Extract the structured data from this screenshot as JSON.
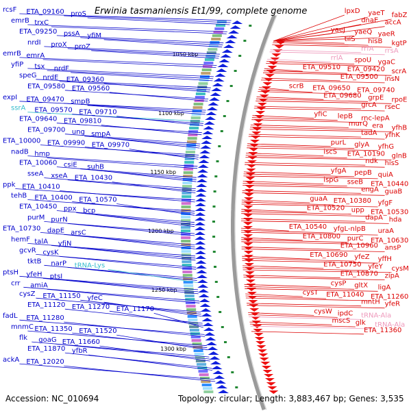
{
  "title": "Erwinia tasmaniensis Et1/99, complete genome",
  "accession": "Accession: NC_010694",
  "topology": "Topology: circular; Length: 3,883,467 bp; Genes: 3,535",
  "colors": {
    "left_genes": "#0000cc",
    "right_genes": "#dd0000",
    "trna": "#33bbcc",
    "pink": "#ee99bb",
    "backbone": "#8a8a8a"
  },
  "kbp_marks": [
    "1050 kbp",
    "1100 kbp",
    "1150 kbp",
    "1200 kbp",
    "1250 kbp",
    "1300 kbp"
  ],
  "left_labels": [
    {
      "t": "rcsF"
    },
    {
      "t": "ETA_09160"
    },
    {
      "t": "proS"
    },
    {
      "t": "emrB"
    },
    {
      "t": "trxC"
    },
    {
      "t": "ETA_09250"
    },
    {
      "t": "pssA"
    },
    {
      "t": "yfiM"
    },
    {
      "t": "nrdI"
    },
    {
      "t": "proX"
    },
    {
      "t": "proZ"
    },
    {
      "t": "emrB"
    },
    {
      "t": "emrA"
    },
    {
      "t": "yfiP"
    },
    {
      "t": "tsx"
    },
    {
      "t": "nrdF"
    },
    {
      "t": "speG"
    },
    {
      "t": "nrdE"
    },
    {
      "t": "ETA_09360"
    },
    {
      "t": "ETA_09580"
    },
    {
      "t": "ETA_09560"
    },
    {
      "t": "expI"
    },
    {
      "t": "ETA_09470"
    },
    {
      "t": "smpB"
    },
    {
      "t": "ssrA",
      "c": "trna"
    },
    {
      "t": "ETA_09570"
    },
    {
      "t": "ETA_09710"
    },
    {
      "t": "ETA_09640"
    },
    {
      "t": "ETA_09810"
    },
    {
      "t": "ETA_09700"
    },
    {
      "t": "ung"
    },
    {
      "t": "smpA"
    },
    {
      "t": "ETA_10000"
    },
    {
      "t": "ETA_09990"
    },
    {
      "t": "ETA_09970"
    },
    {
      "t": "nadB"
    },
    {
      "t": "hmp"
    },
    {
      "t": "ETA_10060"
    },
    {
      "t": "csiE"
    },
    {
      "t": "suhB"
    },
    {
      "t": "sseA"
    },
    {
      "t": "xseA"
    },
    {
      "t": "ETA_10430"
    },
    {
      "t": "ppk"
    },
    {
      "t": "ETA_10410"
    },
    {
      "t": "tehB"
    },
    {
      "t": "ETA_10400"
    },
    {
      "t": "ETA_10570"
    },
    {
      "t": "ETA_10450"
    },
    {
      "t": "ppx"
    },
    {
      "t": "bcp"
    },
    {
      "t": "purM"
    },
    {
      "t": "purN"
    },
    {
      "t": "ETA_10730"
    },
    {
      "t": "dapE"
    },
    {
      "t": "arsC"
    },
    {
      "t": "hemF"
    },
    {
      "t": "talA"
    },
    {
      "t": "yfjN"
    },
    {
      "t": "gcvR"
    },
    {
      "t": "cysK"
    },
    {
      "t": "tktB"
    },
    {
      "t": "narP"
    },
    {
      "t": "tRNA-Lys",
      "c": "trna"
    },
    {
      "t": "ptsH"
    },
    {
      "t": "yfeH"
    },
    {
      "t": "ptsI"
    },
    {
      "t": "crr"
    },
    {
      "t": "amiA"
    },
    {
      "t": "cysZ"
    },
    {
      "t": "ETA_11150"
    },
    {
      "t": "yfeC"
    },
    {
      "t": "ETA_11120"
    },
    {
      "t": "ETA_11270"
    },
    {
      "t": "ETA_11170"
    },
    {
      "t": "fadL"
    },
    {
      "t": "ETA_11280"
    },
    {
      "t": "mnmC"
    },
    {
      "t": "ETA_11350"
    },
    {
      "t": "ETA_11520"
    },
    {
      "t": "flk"
    },
    {
      "t": "goaG"
    },
    {
      "t": "ETA_11660"
    },
    {
      "t": "ETA_11870"
    },
    {
      "t": "yfbR"
    },
    {
      "t": "ackA"
    },
    {
      "t": "ETA_12020"
    }
  ],
  "right_labels": [
    {
      "t": "lpxD"
    },
    {
      "t": "yaeT"
    },
    {
      "t": "fabZ"
    },
    {
      "t": "dnaE"
    },
    {
      "t": "accA"
    },
    {
      "t": "yaeJ"
    },
    {
      "t": "yaeQ"
    },
    {
      "t": "yaeR"
    },
    {
      "t": "tilS"
    },
    {
      "t": "hisB"
    },
    {
      "t": "kgtP"
    },
    {
      "t": "rrfA",
      "c": "pink"
    },
    {
      "t": "rrsA",
      "c": "pink"
    },
    {
      "t": "rrlA",
      "c": "pink"
    },
    {
      "t": "spoU"
    },
    {
      "t": "ygaC"
    },
    {
      "t": "ETA_09510"
    },
    {
      "t": "ETA_09420"
    },
    {
      "t": "scrA"
    },
    {
      "t": "ETA_09500"
    },
    {
      "t": "insN"
    },
    {
      "t": "scrB"
    },
    {
      "t": "ETA_09650"
    },
    {
      "t": "ETA_09740"
    },
    {
      "t": "ETA_09680"
    },
    {
      "t": "grpE"
    },
    {
      "t": "rpoE"
    },
    {
      "t": "grcA"
    },
    {
      "t": "rseC"
    },
    {
      "t": "yfiC"
    },
    {
      "t": "lepB"
    },
    {
      "t": "rnc-lepA"
    },
    {
      "t": "murQ"
    },
    {
      "t": "era"
    },
    {
      "t": "yfhB"
    },
    {
      "t": "tadA"
    },
    {
      "t": "yfhK"
    },
    {
      "t": "purL"
    },
    {
      "t": "glyA"
    },
    {
      "t": "yfhG"
    },
    {
      "t": "iscS"
    },
    {
      "t": "ETA_10190"
    },
    {
      "t": "glnB"
    },
    {
      "t": "ndk"
    },
    {
      "t": "hisS"
    },
    {
      "t": "yfgA"
    },
    {
      "t": "pepB"
    },
    {
      "t": "quiA"
    },
    {
      "t": "ispG"
    },
    {
      "t": "sseB"
    },
    {
      "t": "ETA_10440"
    },
    {
      "t": "engA"
    },
    {
      "t": "guaB"
    },
    {
      "t": "guaA"
    },
    {
      "t": "ETA_10380"
    },
    {
      "t": "yfgF"
    },
    {
      "t": "ETA_10520"
    },
    {
      "t": "upp"
    },
    {
      "t": "ETA_10530"
    },
    {
      "t": "dapA"
    },
    {
      "t": "hda"
    },
    {
      "t": "ETA_10540"
    },
    {
      "t": "yfgL-nlpB"
    },
    {
      "t": "uraA"
    },
    {
      "t": "ETA_10800"
    },
    {
      "t": "purC"
    },
    {
      "t": "ETA_10630"
    },
    {
      "t": "ETA_10960"
    },
    {
      "t": "ansP"
    },
    {
      "t": "ETA_10690"
    },
    {
      "t": "yfeZ"
    },
    {
      "t": "yffH"
    },
    {
      "t": "ETA_10750"
    },
    {
      "t": "yfeY"
    },
    {
      "t": "cysM"
    },
    {
      "t": "ETA_10870"
    },
    {
      "t": "zipA"
    },
    {
      "t": "cysP"
    },
    {
      "t": "gltX"
    },
    {
      "t": "ligA"
    },
    {
      "t": "cysT"
    },
    {
      "t": "ETA_11040"
    },
    {
      "t": "ETA_11260"
    },
    {
      "t": "mntH"
    },
    {
      "t": "yfeR"
    },
    {
      "t": "cysW"
    },
    {
      "t": "ipdC"
    },
    {
      "t": "tRNA-Ala",
      "c": "pink"
    },
    {
      "t": "mscS"
    },
    {
      "t": "glk"
    },
    {
      "t": "tRNA-Ala",
      "c": "pink"
    },
    {
      "t": "ETA_11360"
    }
  ]
}
